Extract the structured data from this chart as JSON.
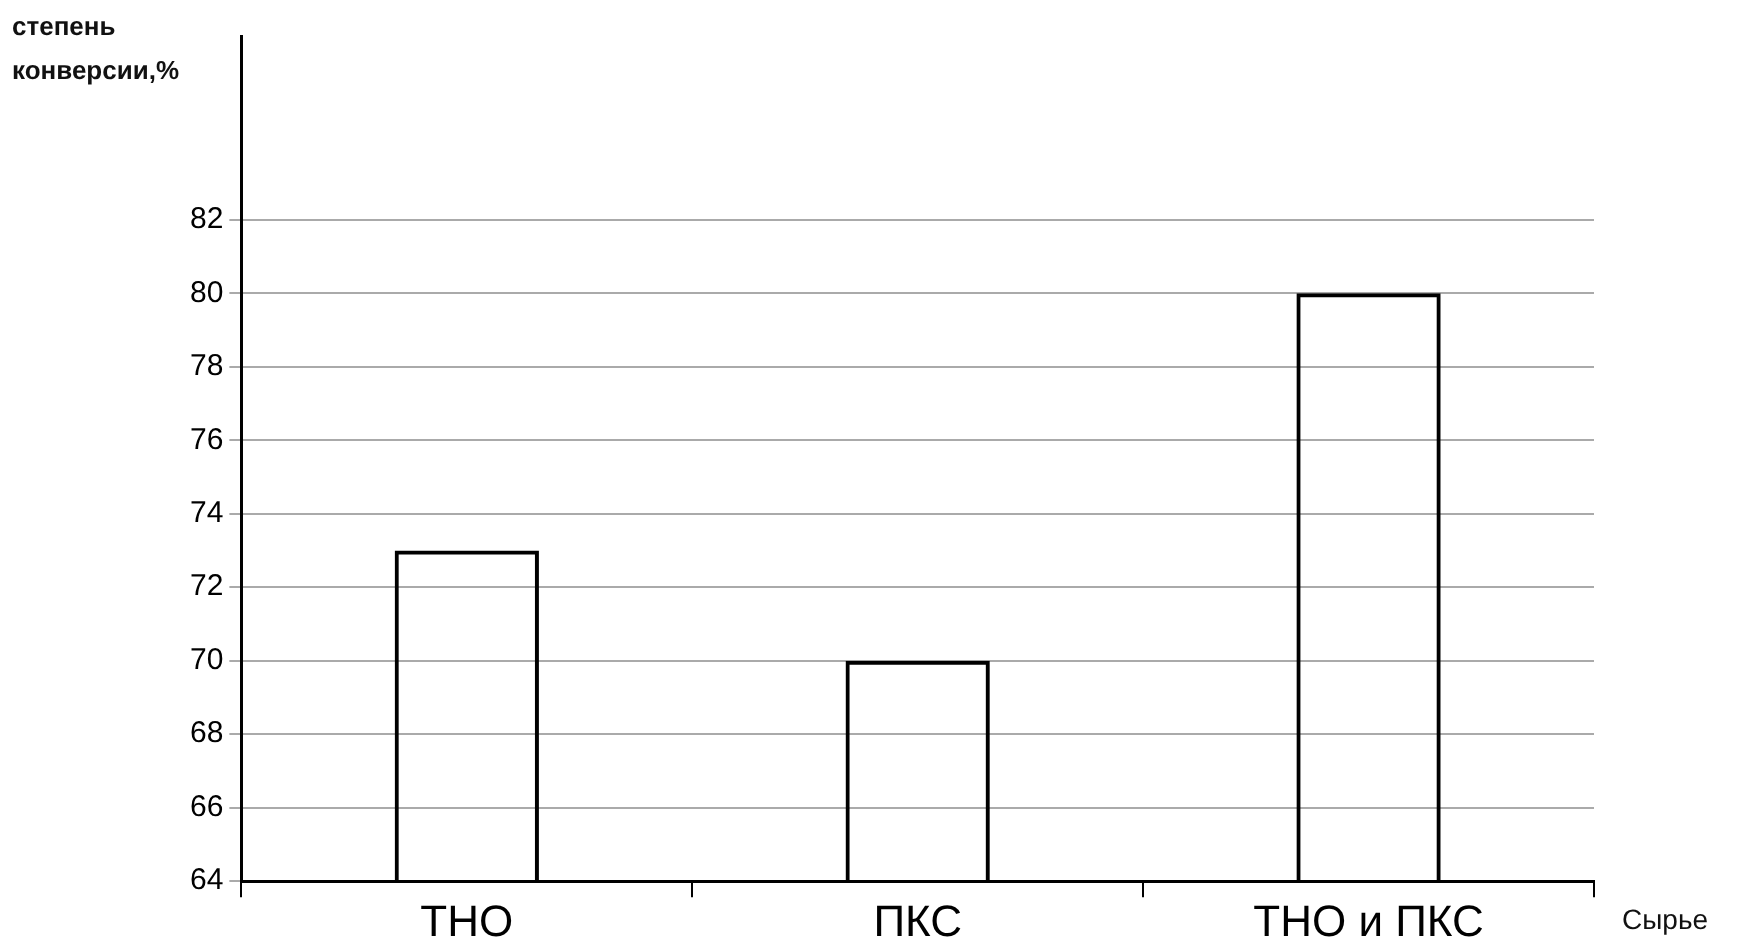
{
  "chart_data": {
    "type": "bar",
    "ylabel": "степень конверсии,%",
    "xlabel": "Сырье",
    "categories": [
      "ТНО",
      "ПКС",
      "ТНО и ПКС"
    ],
    "values": [
      73,
      70,
      80
    ],
    "color": "#000000",
    "ylim": [
      64,
      87
    ],
    "yticks": [
      64,
      66,
      68,
      70,
      72,
      74,
      76,
      78,
      80,
      82
    ],
    "grid": "y",
    "legend": false
  }
}
